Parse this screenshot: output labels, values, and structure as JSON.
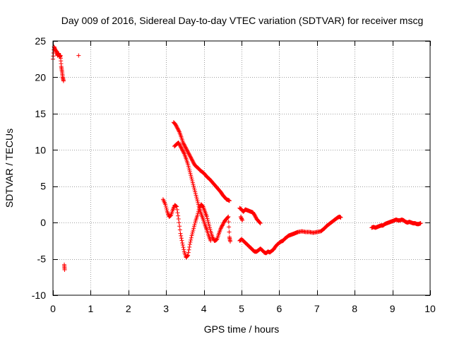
{
  "chart_data": {
    "type": "scatter",
    "title": "Day 009 of 2016, Sidereal Day-to-day VTEC variation (SDTVAR) for receiver mscg",
    "xlabel": "GPS time / hours",
    "ylabel": "SDTVAR / TECUs",
    "xlim": [
      0,
      10
    ],
    "ylim": [
      -10,
      25
    ],
    "xticks": [
      0,
      1,
      2,
      3,
      4,
      5,
      6,
      7,
      8,
      9,
      10
    ],
    "yticks": [
      -10,
      -5,
      0,
      5,
      10,
      15,
      20,
      25
    ],
    "grid": true,
    "marker": "plus",
    "series": [
      {
        "name": "SDTVAR",
        "color": "#ff0000",
        "segments": [
          [
            [
              0.0,
              22.5
            ],
            [
              0.03,
              24.2
            ],
            [
              0.06,
              23.8
            ],
            [
              0.1,
              23.5
            ],
            [
              0.12,
              23.0
            ],
            [
              0.15,
              23.3
            ],
            [
              0.18,
              22.8
            ],
            [
              0.2,
              23.0
            ],
            [
              0.22,
              21.5
            ],
            [
              0.24,
              20.8
            ],
            [
              0.26,
              20.0
            ],
            [
              0.28,
              19.5
            ]
          ],
          [
            [
              0.68,
              23.0
            ]
          ],
          [
            [
              0.3,
              -5.8
            ],
            [
              0.31,
              -6.5
            ]
          ],
          [
            [
              2.92,
              3.2
            ],
            [
              2.98,
              2.5
            ],
            [
              3.03,
              1.5
            ],
            [
              3.08,
              0.8
            ],
            [
              3.13,
              1.0
            ],
            [
              3.18,
              1.8
            ],
            [
              3.23,
              2.4
            ],
            [
              3.28,
              2.2
            ],
            [
              3.33,
              0.5
            ],
            [
              3.38,
              -1.5
            ],
            [
              3.43,
              -2.8
            ],
            [
              3.48,
              -4.0
            ],
            [
              3.53,
              -4.8
            ],
            [
              3.58,
              -4.5
            ],
            [
              3.63,
              -3.0
            ],
            [
              3.68,
              -1.8
            ],
            [
              3.73,
              -0.8
            ],
            [
              3.78,
              0.2
            ],
            [
              3.83,
              1.0
            ],
            [
              3.88,
              2.0
            ],
            [
              3.93,
              2.5
            ],
            [
              3.98,
              2.2
            ],
            [
              4.03,
              1.5
            ],
            [
              4.08,
              0.8
            ],
            [
              4.13,
              -0.2
            ],
            [
              4.18,
              -1.2
            ],
            [
              4.23,
              -2.0
            ],
            [
              4.28,
              -2.5
            ]
          ],
          [
            [
              3.22,
              10.5
            ],
            [
              3.28,
              10.8
            ],
            [
              3.33,
              11.0
            ],
            [
              3.38,
              10.5
            ],
            [
              3.43,
              10.0
            ],
            [
              3.48,
              9.5
            ],
            [
              3.53,
              8.8
            ],
            [
              3.58,
              8.0
            ],
            [
              3.63,
              7.0
            ],
            [
              3.68,
              6.0
            ],
            [
              3.73,
              5.0
            ],
            [
              3.78,
              4.0
            ],
            [
              3.83,
              3.0
            ],
            [
              3.88,
              2.0
            ],
            [
              3.93,
              1.2
            ],
            [
              3.98,
              0.5
            ],
            [
              4.03,
              -0.3
            ],
            [
              4.08,
              -1.0
            ],
            [
              4.13,
              -1.8
            ],
            [
              4.18,
              -2.5
            ]
          ],
          [
            [
              3.2,
              13.8
            ],
            [
              3.25,
              13.5
            ],
            [
              3.3,
              13.0
            ],
            [
              3.35,
              12.5
            ],
            [
              3.4,
              11.8
            ],
            [
              3.45,
              11.0
            ],
            [
              3.5,
              10.5
            ],
            [
              3.55,
              10.0
            ],
            [
              3.6,
              9.5
            ],
            [
              3.65,
              9.0
            ],
            [
              3.7,
              8.5
            ],
            [
              3.75,
              8.0
            ],
            [
              3.8,
              7.7
            ],
            [
              3.85,
              7.5
            ],
            [
              3.9,
              7.2
            ],
            [
              3.95,
              7.0
            ],
            [
              4.0,
              6.8
            ],
            [
              4.05,
              6.5
            ],
            [
              4.1,
              6.2
            ],
            [
              4.15,
              6.0
            ],
            [
              4.2,
              5.7
            ],
            [
              4.25,
              5.4
            ],
            [
              4.3,
              5.1
            ],
            [
              4.35,
              4.8
            ],
            [
              4.4,
              4.5
            ],
            [
              4.45,
              4.2
            ],
            [
              4.5,
              3.8
            ],
            [
              4.55,
              3.5
            ],
            [
              4.6,
              3.2
            ],
            [
              4.65,
              3.1
            ],
            [
              4.68,
              3.0
            ]
          ],
          [
            [
              4.3,
              -2.5
            ],
            [
              4.35,
              -2.3
            ],
            [
              4.4,
              -1.5
            ],
            [
              4.45,
              -0.8
            ],
            [
              4.5,
              -0.3
            ],
            [
              4.55,
              0.2
            ],
            [
              4.6,
              0.5
            ],
            [
              4.65,
              0.8
            ],
            [
              4.68,
              -2.0
            ],
            [
              4.7,
              -2.6
            ]
          ],
          [
            [
              4.95,
              2.0
            ],
            [
              5.0,
              1.8
            ],
            [
              5.05,
              1.5
            ],
            [
              5.1,
              1.8
            ],
            [
              5.15,
              1.7
            ],
            [
              5.2,
              1.6
            ],
            [
              5.25,
              1.5
            ],
            [
              5.3,
              1.4
            ],
            [
              5.35,
              1.0
            ],
            [
              5.4,
              0.5
            ],
            [
              5.45,
              0.2
            ],
            [
              5.5,
              -0.1
            ]
          ],
          [
            [
              4.98,
              0.8
            ],
            [
              5.02,
              0.3
            ]
          ],
          [
            [
              4.95,
              -2.5
            ],
            [
              5.0,
              -2.3
            ],
            [
              5.05,
              -2.5
            ],
            [
              5.1,
              -2.8
            ],
            [
              5.15,
              -3.0
            ],
            [
              5.2,
              -3.3
            ],
            [
              5.25,
              -3.5
            ],
            [
              5.3,
              -3.8
            ],
            [
              5.35,
              -4.0
            ],
            [
              5.4,
              -4.0
            ],
            [
              5.45,
              -3.8
            ],
            [
              5.5,
              -3.6
            ],
            [
              5.55,
              -3.8
            ],
            [
              5.6,
              -4.1
            ],
            [
              5.65,
              -4.2
            ],
            [
              5.7,
              -4.0
            ],
            [
              5.75,
              -4.1
            ],
            [
              5.8,
              -3.9
            ],
            [
              5.85,
              -3.7
            ],
            [
              5.9,
              -3.3
            ],
            [
              5.95,
              -3.0
            ],
            [
              6.0,
              -2.8
            ],
            [
              6.05,
              -2.6
            ],
            [
              6.1,
              -2.5
            ],
            [
              6.15,
              -2.2
            ],
            [
              6.2,
              -2.0
            ],
            [
              6.25,
              -1.8
            ],
            [
              6.3,
              -1.7
            ],
            [
              6.35,
              -1.6
            ],
            [
              6.4,
              -1.5
            ],
            [
              6.45,
              -1.4
            ],
            [
              6.5,
              -1.3
            ],
            [
              6.6,
              -1.2
            ],
            [
              6.7,
              -1.3
            ],
            [
              6.8,
              -1.3
            ],
            [
              6.9,
              -1.4
            ],
            [
              7.0,
              -1.3
            ],
            [
              7.1,
              -1.2
            ],
            [
              7.15,
              -1.0
            ],
            [
              7.2,
              -0.8
            ],
            [
              7.25,
              -0.5
            ],
            [
              7.3,
              -0.3
            ],
            [
              7.35,
              -0.1
            ],
            [
              7.4,
              0.1
            ],
            [
              7.45,
              0.3
            ],
            [
              7.5,
              0.5
            ],
            [
              7.55,
              0.7
            ],
            [
              7.6,
              0.8
            ],
            [
              7.63,
              0.7
            ]
          ],
          [
            [
              8.45,
              -0.7
            ],
            [
              8.5,
              -0.6
            ],
            [
              8.55,
              -0.7
            ],
            [
              8.6,
              -0.6
            ],
            [
              8.65,
              -0.5
            ],
            [
              8.7,
              -0.4
            ],
            [
              8.75,
              -0.4
            ],
            [
              8.8,
              -0.2
            ],
            [
              8.85,
              -0.1
            ],
            [
              8.9,
              0.0
            ],
            [
              8.95,
              0.1
            ],
            [
              9.0,
              0.2
            ],
            [
              9.05,
              0.3
            ],
            [
              9.1,
              0.4
            ],
            [
              9.15,
              0.3
            ],
            [
              9.2,
              0.3
            ],
            [
              9.25,
              0.4
            ],
            [
              9.3,
              0.3
            ],
            [
              9.35,
              0.1
            ],
            [
              9.4,
              0.0
            ],
            [
              9.45,
              0.1
            ],
            [
              9.5,
              0.0
            ],
            [
              9.55,
              -0.1
            ],
            [
              9.6,
              -0.1
            ],
            [
              9.65,
              -0.2
            ],
            [
              9.7,
              -0.2
            ],
            [
              9.75,
              -0.1
            ]
          ]
        ]
      }
    ]
  }
}
